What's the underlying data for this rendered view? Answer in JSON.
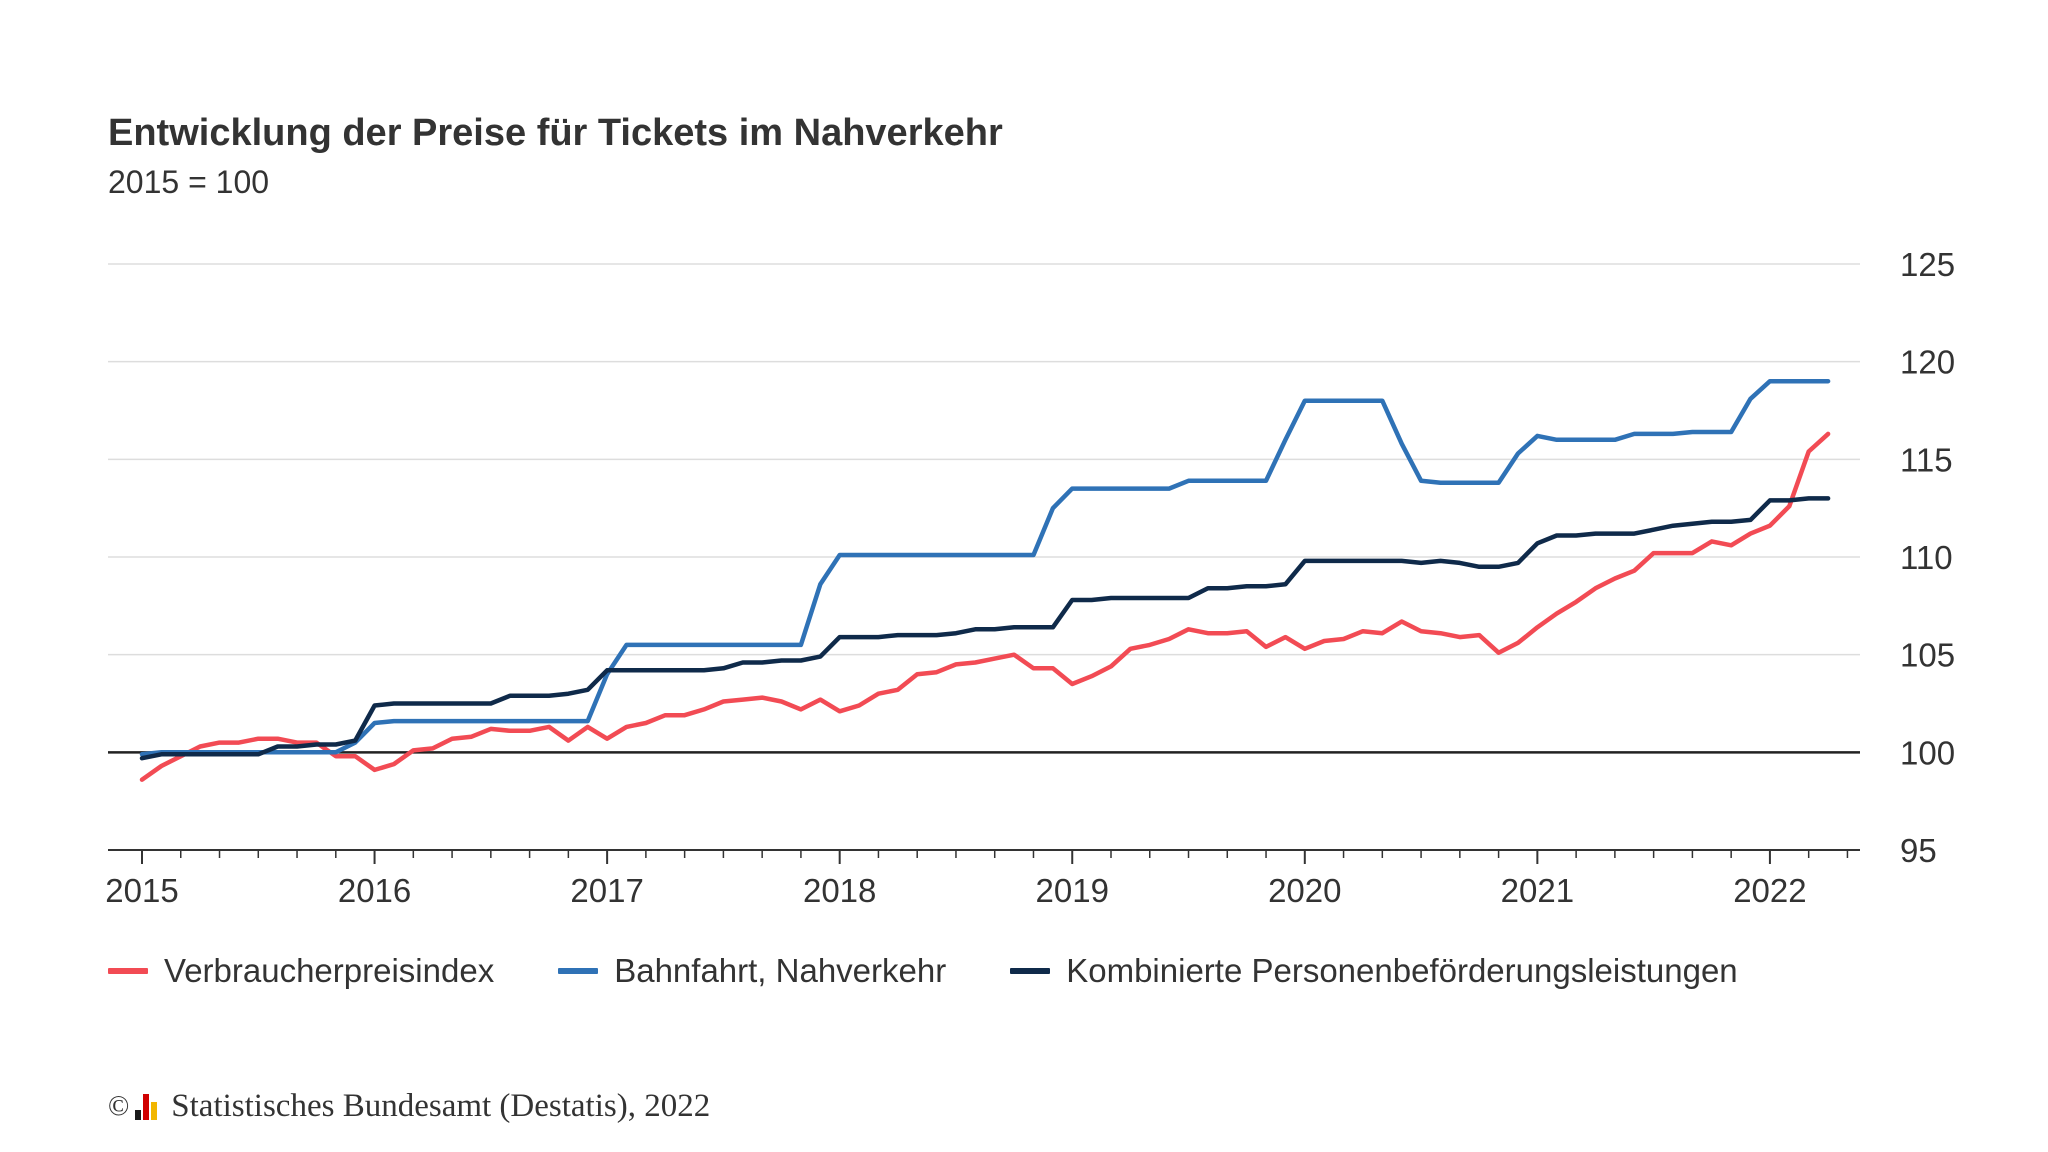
{
  "header": {
    "title": "Entwicklung der Preise für Tickets im Nahverkehr",
    "subtitle": "2015 = 100"
  },
  "source": {
    "copyright": "©",
    "text": "Statistisches Bundesamt (Destatis), 2022"
  },
  "chart_data": {
    "type": "line",
    "title": "Entwicklung der Preise für Tickets im Nahverkehr",
    "subtitle": "2015 = 100",
    "xlabel": "",
    "ylabel": "",
    "x_start": "2015-01",
    "x_step": "month",
    "x_ticks": [
      "2015",
      "2016",
      "2017",
      "2018",
      "2019",
      "2020",
      "2021",
      "2022"
    ],
    "ylim": [
      95,
      125
    ],
    "y_ticks": [
      95,
      100,
      105,
      110,
      115,
      120,
      125
    ],
    "reference_line": 100,
    "grid": true,
    "y_axis_position": "right",
    "legend_position": "bottom",
    "series": [
      {
        "name": "Verbraucherpreisindex",
        "color": "#f24b54",
        "values": [
          98.6,
          99.3,
          99.8,
          100.3,
          100.5,
          100.5,
          100.7,
          100.7,
          100.5,
          100.5,
          99.8,
          99.8,
          99.1,
          99.4,
          100.1,
          100.2,
          100.7,
          100.8,
          101.2,
          101.1,
          101.1,
          101.3,
          100.6,
          101.3,
          100.7,
          101.3,
          101.5,
          101.9,
          101.9,
          102.2,
          102.6,
          102.7,
          102.8,
          102.6,
          102.2,
          102.7,
          102.1,
          102.4,
          103.0,
          103.2,
          104.0,
          104.1,
          104.5,
          104.6,
          104.8,
          105.0,
          104.3,
          104.3,
          103.5,
          103.9,
          104.4,
          105.3,
          105.5,
          105.8,
          106.3,
          106.1,
          106.1,
          106.2,
          105.4,
          105.9,
          105.3,
          105.7,
          105.8,
          106.2,
          106.1,
          106.7,
          106.2,
          106.1,
          105.9,
          106.0,
          105.1,
          105.6,
          106.4,
          107.1,
          107.7,
          108.4,
          108.9,
          109.3,
          110.2,
          110.2,
          110.2,
          110.8,
          110.6,
          111.2,
          111.6,
          112.6,
          115.4,
          116.3
        ]
      },
      {
        "name": "Bahnfahrt, Nahverkehr",
        "color": "#2f72b6",
        "values": [
          99.9,
          100.0,
          100.0,
          100.0,
          100.0,
          100.0,
          100.0,
          100.0,
          100.0,
          100.0,
          100.0,
          100.5,
          101.5,
          101.6,
          101.6,
          101.6,
          101.6,
          101.6,
          101.6,
          101.6,
          101.6,
          101.6,
          101.6,
          101.6,
          104.0,
          105.5,
          105.5,
          105.5,
          105.5,
          105.5,
          105.5,
          105.5,
          105.5,
          105.5,
          105.5,
          108.6,
          110.1,
          110.1,
          110.1,
          110.1,
          110.1,
          110.1,
          110.1,
          110.1,
          110.1,
          110.1,
          110.1,
          112.5,
          113.5,
          113.5,
          113.5,
          113.5,
          113.5,
          113.5,
          113.9,
          113.9,
          113.9,
          113.9,
          113.9,
          116.0,
          118.0,
          118.0,
          118.0,
          118.0,
          118.0,
          115.8,
          113.9,
          113.8,
          113.8,
          113.8,
          113.8,
          115.3,
          116.2,
          116.0,
          116.0,
          116.0,
          116.0,
          116.3,
          116.3,
          116.3,
          116.4,
          116.4,
          116.4,
          118.1,
          119.0,
          119.0,
          119.0,
          119.0
        ]
      },
      {
        "name": "Kombinierte Personenbeförderungsleistungen",
        "color": "#0f2a4a",
        "values": [
          99.7,
          99.9,
          99.9,
          99.9,
          99.9,
          99.9,
          99.9,
          100.3,
          100.3,
          100.4,
          100.4,
          100.6,
          102.4,
          102.5,
          102.5,
          102.5,
          102.5,
          102.5,
          102.5,
          102.9,
          102.9,
          102.9,
          103.0,
          103.2,
          104.2,
          104.2,
          104.2,
          104.2,
          104.2,
          104.2,
          104.3,
          104.6,
          104.6,
          104.7,
          104.7,
          104.9,
          105.9,
          105.9,
          105.9,
          106.0,
          106.0,
          106.0,
          106.1,
          106.3,
          106.3,
          106.4,
          106.4,
          106.4,
          107.8,
          107.8,
          107.9,
          107.9,
          107.9,
          107.9,
          107.9,
          108.4,
          108.4,
          108.5,
          108.5,
          108.6,
          109.8,
          109.8,
          109.8,
          109.8,
          109.8,
          109.8,
          109.7,
          109.8,
          109.7,
          109.5,
          109.5,
          109.7,
          110.7,
          111.1,
          111.1,
          111.2,
          111.2,
          111.2,
          111.4,
          111.6,
          111.7,
          111.8,
          111.8,
          111.9,
          112.9,
          112.9,
          113.0,
          113.0
        ]
      }
    ]
  }
}
